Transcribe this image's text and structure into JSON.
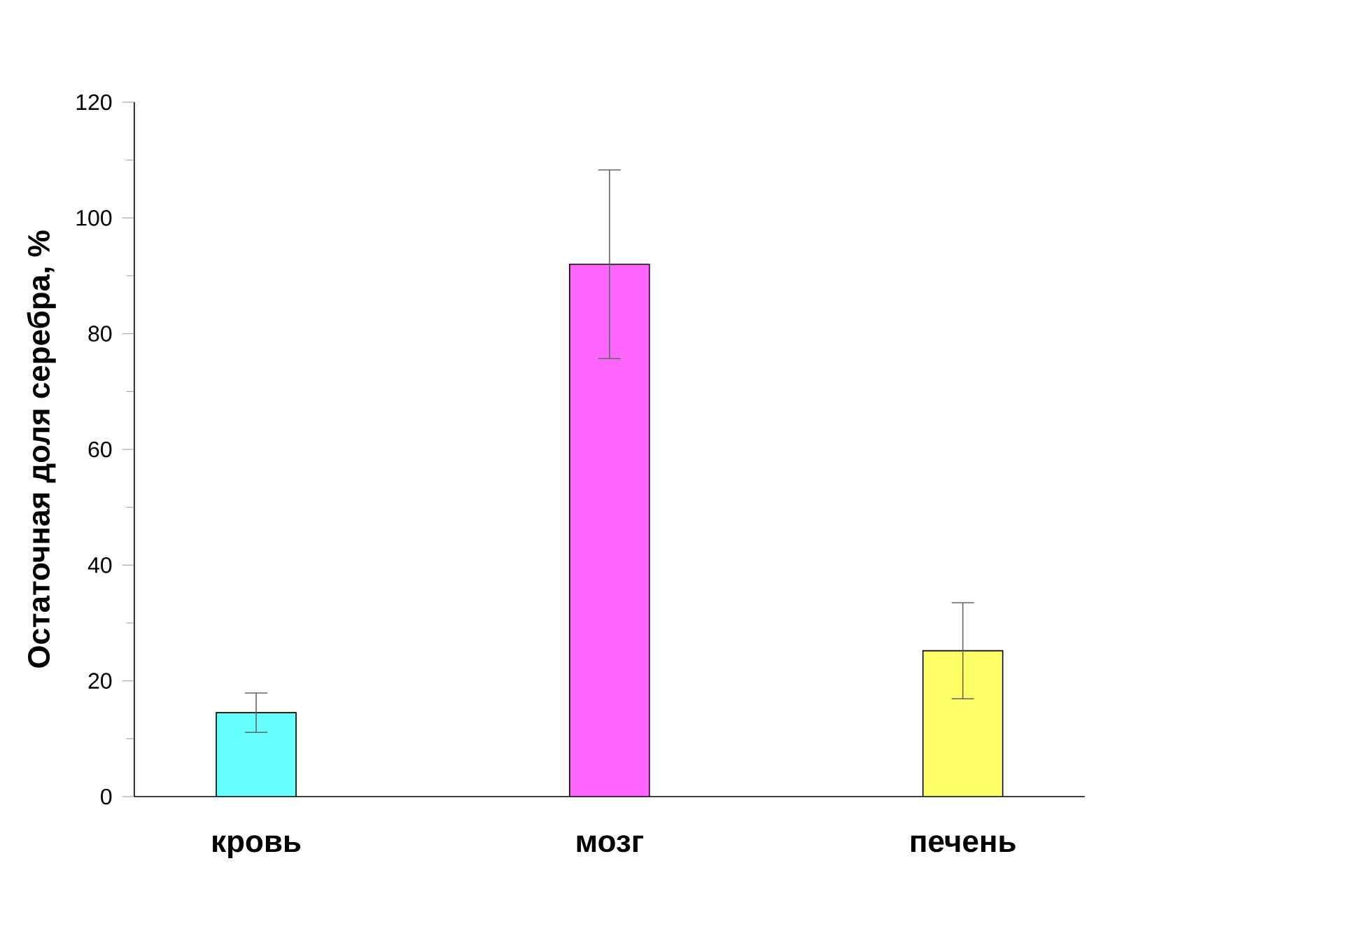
{
  "chart_data": {
    "type": "bar",
    "ylabel": "Остаточная доля серебра, %",
    "categories": [
      "кровь",
      "мозг",
      "печень"
    ],
    "values": [
      14.5,
      92,
      25.2
    ],
    "errors": [
      3.4,
      16.3,
      8.3
    ],
    "colors": [
      "#66ffff",
      "#ff66ff",
      "#ffff66"
    ],
    "ylim": [
      0,
      120
    ],
    "yticks": [
      0,
      20,
      40,
      60,
      80,
      100,
      120
    ],
    "grid": false
  }
}
